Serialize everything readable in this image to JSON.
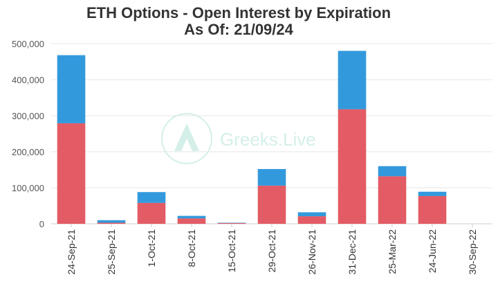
{
  "chart_data": {
    "type": "bar",
    "stacked": true,
    "title": "ETH Options - Open Interest by Expiration",
    "subtitle": "As Of: 21/09/24",
    "categories": [
      "24-Sep-21",
      "25-Sep-21",
      "1-Oct-21",
      "8-Oct-21",
      "15-Oct-21",
      "29-Oct-21",
      "26-Nov-21",
      "31-Dec-21",
      "25-Mar-22",
      "24-Jun-22",
      "30-Sep-22"
    ],
    "series": [
      {
        "values": [
          279000,
          3000,
          58000,
          15000,
          2000,
          106000,
          21000,
          318000,
          132000,
          77000,
          0
        ],
        "color": "#e35b65"
      },
      {
        "values": [
          189000,
          7000,
          30000,
          7000,
          1000,
          46000,
          11000,
          162000,
          28000,
          12000,
          0
        ],
        "color": "#3399dd"
      }
    ],
    "ylim": [
      0,
      500000
    ],
    "yticks": [
      0,
      100000,
      200000,
      300000,
      400000,
      500000
    ],
    "ytick_labels": [
      "0",
      "100,000",
      "200,000",
      "300,000",
      "400,000",
      "500,000"
    ],
    "grid": true,
    "watermark": "Greeks.Live"
  }
}
